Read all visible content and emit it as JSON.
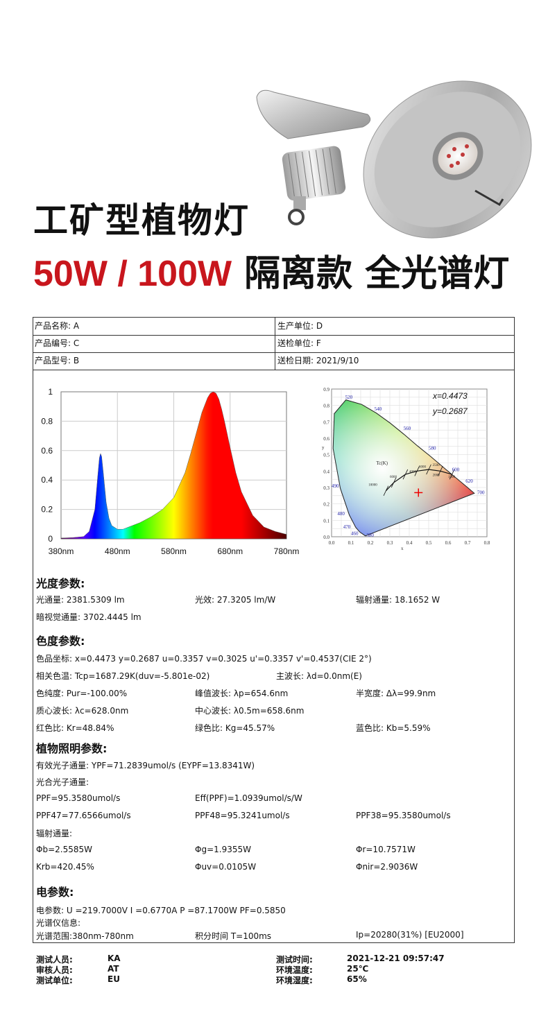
{
  "headline": {
    "line1": "工矿型植物灯",
    "line2_power": "50W / 100W",
    "line2_text": "隔离款 全光谱灯"
  },
  "header_rows": [
    {
      "left": "产品名称: A",
      "right": "生产单位: D"
    },
    {
      "left": "产品编号: C",
      "right": "送检单位: F"
    },
    {
      "left": "产品型号: B",
      "right": "送检日期: 2021/9/10"
    }
  ],
  "chart_data": [
    {
      "type": "area",
      "title": "",
      "xlabel": "",
      "ylabel": "",
      "xlim": [
        380,
        780
      ],
      "ylim": [
        0,
        1
      ],
      "x_ticks": [
        "380nm",
        "480nm",
        "580nm",
        "680nm",
        "780nm"
      ],
      "y_ticks": [
        "1",
        "0.8",
        "0.6",
        "0.4",
        "0.2",
        "0"
      ],
      "grid": true,
      "series": [
        {
          "x": [
            380,
            400,
            420,
            430,
            440,
            445,
            448,
            450,
            452,
            455,
            460,
            465,
            470,
            480,
            490,
            500,
            520,
            540,
            560,
            580,
            600,
            610,
            620,
            630,
            640,
            645,
            650,
            655,
            660,
            665,
            670,
            680,
            690,
            700,
            720,
            740,
            760,
            780
          ],
          "y": [
            0.005,
            0.008,
            0.015,
            0.05,
            0.2,
            0.42,
            0.55,
            0.58,
            0.56,
            0.45,
            0.25,
            0.14,
            0.09,
            0.065,
            0.065,
            0.08,
            0.11,
            0.15,
            0.2,
            0.28,
            0.45,
            0.58,
            0.72,
            0.86,
            0.96,
            0.99,
            1.0,
            0.99,
            0.95,
            0.88,
            0.8,
            0.62,
            0.45,
            0.32,
            0.16,
            0.08,
            0.05,
            0.03
          ]
        }
      ]
    },
    {
      "type": "scatter",
      "title": "",
      "xlabel": "x",
      "ylabel": "y",
      "xlim": [
        0,
        0.8
      ],
      "ylim": [
        0,
        0.9
      ],
      "x_ticks": [
        "0.0",
        "0.1",
        "0.2",
        "0.3",
        "0.4",
        "0.5",
        "0.6",
        "0.7",
        "0.8"
      ],
      "y_ticks": [
        "0.9",
        "0.8",
        "0.7",
        "0.6",
        "0.5",
        "0.4",
        "0.3",
        "0.2",
        "0.1",
        "0.0"
      ],
      "annotations": [
        "x=0.4473",
        "y=0.2687"
      ],
      "wavelength_labels": [
        "520",
        "540",
        "560",
        "580",
        "600",
        "620",
        "700",
        "490",
        "480",
        "470",
        "460",
        "380"
      ],
      "cct_label": "Tc(K)",
      "cct_ticks": [
        "10000",
        "6000",
        "4000",
        "3000",
        "2500",
        "2000",
        "1500"
      ],
      "marker": {
        "x": 0.4473,
        "y": 0.2687
      }
    }
  ],
  "sections": {
    "photometric": {
      "title": "光度参数:",
      "flux": "光通量: 2381.5309 lm",
      "efficacy": "光效: 27.3205 lm/W",
      "radiant_flux": "辐射通量: 18.1652 W",
      "scotopic": "暗视觉通量: 3702.4445 lm"
    },
    "color": {
      "title": "色度参数:",
      "coords": "色品坐标: x=0.4473    y=0.2687    u=0.3357    v=0.3025    u'=0.3357    v'=0.4537(CIE 2°)",
      "cct": "相关色温: Tcp=1687.29K(duv=-5.801e-02)",
      "dominant": "主波长: λd=0.0nm(E)",
      "purity": "色纯度: Pur=-100.00%",
      "peak": "峰值波长: λp=654.6nm",
      "fwhm": "半宽度: Δλ=99.9nm",
      "centroid": "质心波长: λc=628.0nm",
      "center": "中心波长: λ0.5m=658.6nm",
      "red": "红色比: Kr=48.84%",
      "green": "绿色比: Kg=45.57%",
      "blue": "蓝色比: Kb=5.59%"
    },
    "plant": {
      "title": "植物照明参数:",
      "ypf": "有效光子通量: YPF=71.2839umol/s (EYPF=13.8341W)",
      "photosynthetic_label": "光合光子通量:",
      "ppf": "PPF=95.3580umol/s",
      "eff": "Eff(PPF)=1.0939umol/s/W",
      "ppf47": "PPF47=77.6566umol/s",
      "ppf48": "PPF48=95.3241umol/s",
      "ppf38": "PPF38=95.3580umol/s",
      "radiant_label": "辐射通量:",
      "phib": "Φb=2.5585W",
      "phig": "Φg=1.9355W",
      "phir": "Φr=10.7571W",
      "krb": "Krb=420.45%",
      "phiuv": "Φuv=0.0105W",
      "phinir": "Φnir=2.9036W"
    },
    "electric": {
      "title": "电参数:",
      "params": "电参数: U =219.7000V     I =0.6770A          P =87.1700W       PF=0.5850",
      "spectro_label": "光谱仪信息:",
      "range": "光谱范围:380nm-780nm",
      "integration": "积分时间 T=100ms",
      "ip": "Ip=20280(31%)   [EU2000]"
    }
  },
  "footer": {
    "tester_label": "测试人员:",
    "tester": "KA",
    "reviewer_label": "审核人员:",
    "reviewer": "AT",
    "unit_label": "测试单位:",
    "unit": "EU",
    "time_label": "测试时间:",
    "time": "2021-12-21 09:57:47",
    "temp_label": "环境温度:",
    "temp": "25℃",
    "humidity_label": "环境湿度:",
    "humidity": "65%"
  },
  "colors": {
    "accent_red": "#c8161d",
    "text": "#111111"
  }
}
